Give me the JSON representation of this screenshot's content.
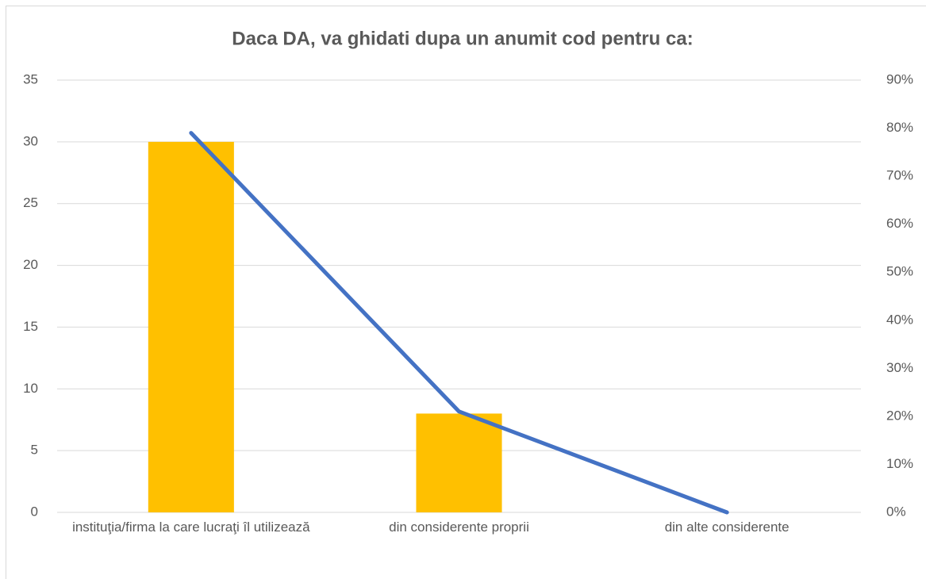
{
  "chart_data": {
    "type": "bar_line",
    "title": "Daca DA, va ghidati dupa un anumit cod pentru ca:",
    "categories": [
      "instituţia/firma la care lucraţi îl utilizează",
      "din considerente proprii",
      "din alte considerente"
    ],
    "series": [
      {
        "type": "bar",
        "color": "#ffc000",
        "values": [
          30,
          8,
          0
        ]
      },
      {
        "type": "line",
        "color": "#4472c4",
        "values": [
          79,
          21,
          0
        ],
        "axis": "y2"
      }
    ],
    "ylim": [
      0,
      35
    ],
    "yticks": [
      0,
      5,
      10,
      15,
      20,
      25,
      30,
      35
    ],
    "y2lim": [
      0,
      90
    ],
    "y2ticks": [
      {
        "value": 0,
        "label": "0%"
      },
      {
        "value": 10,
        "label": "10%"
      },
      {
        "value": 20,
        "label": "20%"
      },
      {
        "value": 30,
        "label": "30%"
      },
      {
        "value": 40,
        "label": "40%"
      },
      {
        "value": 50,
        "label": "50%"
      },
      {
        "value": 60,
        "label": "60%"
      },
      {
        "value": 70,
        "label": "70%"
      },
      {
        "value": 80,
        "label": "80%"
      },
      {
        "value": 90,
        "label": "90%"
      }
    ],
    "grid": true
  }
}
